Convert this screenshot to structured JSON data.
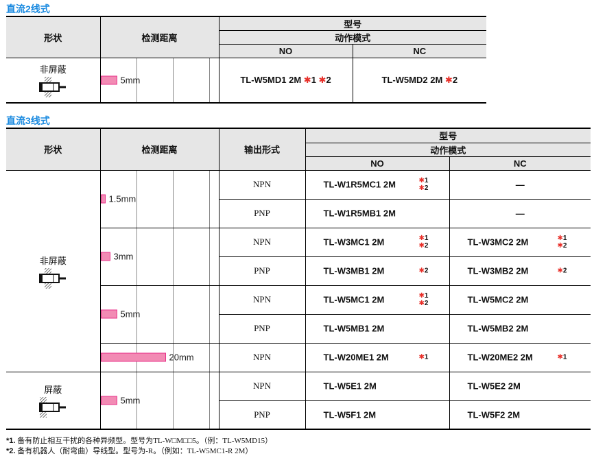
{
  "section1": {
    "title": "直流2线式",
    "headers": {
      "shape": "形状",
      "distance": "检测距离",
      "model": "型号",
      "mode": "动作模式",
      "no": "NO",
      "nc": "NC"
    },
    "row": {
      "shape": "非屏蔽",
      "distance": "5mm",
      "distance_mm": 5,
      "no": "TL-W5MD1 2M",
      "no_notes": [
        "1",
        "2"
      ],
      "nc": "TL-W5MD2 2M",
      "nc_notes": [
        "2"
      ]
    }
  },
  "section2": {
    "title": "直流3线式",
    "headers": {
      "shape": "形状",
      "distance": "检测距离",
      "output": "输出形式",
      "model": "型号",
      "mode": "动作模式",
      "no": "NO",
      "nc": "NC"
    },
    "shapes": [
      "非屏蔽",
      "屏蔽"
    ],
    "distances": [
      {
        "label": "1.5mm",
        "mm": 1.5
      },
      {
        "label": "3mm",
        "mm": 3
      },
      {
        "label": "5mm",
        "mm": 5
      },
      {
        "label": "20mm",
        "mm": 20
      },
      {
        "label": "5mm",
        "mm": 5
      }
    ],
    "rows": [
      {
        "output": "NPN",
        "no": "TL-W1R5MC1 2M",
        "no_notes": "*1\n*2",
        "nc": "—",
        "nc_notes": ""
      },
      {
        "output": "PNP",
        "no": "TL-W1R5MB1 2M",
        "no_notes": "",
        "nc": "—",
        "nc_notes": ""
      },
      {
        "output": "NPN",
        "no": "TL-W3MC1 2M",
        "no_notes": "*1\n*2",
        "nc": "TL-W3MC2 2M",
        "nc_notes": "*1\n*2"
      },
      {
        "output": "PNP",
        "no": "TL-W3MB1 2M",
        "no_notes": "*2",
        "nc": "TL-W3MB2 2M",
        "nc_notes": "*2"
      },
      {
        "output": "NPN",
        "no": "TL-W5MC1 2M",
        "no_notes": "*1\n*2",
        "nc": "TL-W5MC2 2M",
        "nc_notes": ""
      },
      {
        "output": "PNP",
        "no": "TL-W5MB1 2M",
        "no_notes": "",
        "nc": "TL-W5MB2 2M",
        "nc_notes": ""
      },
      {
        "output": "NPN",
        "no": "TL-W20ME1 2M",
        "no_notes": "*1",
        "nc": "TL-W20ME2 2M",
        "nc_notes": "*1"
      },
      {
        "output": "NPN",
        "no": "TL-W5E1 2M",
        "no_notes": "",
        "nc": "TL-W5E2 2M",
        "nc_notes": ""
      },
      {
        "output": "PNP",
        "no": "TL-W5F1 2M",
        "no_notes": "",
        "nc": "TL-W5F2 2M",
        "nc_notes": ""
      }
    ]
  },
  "footnotes": [
    {
      "mark": "*1.",
      "text": "备有防止相互干扰的各种异频型。型号为TL-W□M□□5。（例：TL-W5MD15）"
    },
    {
      "mark": "*2.",
      "text": "备有机器人（耐弯曲）导线型。型号为-R。（例如：TL-W5MC1-R 2M）"
    }
  ],
  "colors": {
    "title": "#1a8ae0",
    "bar": "#f28bb4",
    "note_star": "#e8302a",
    "header_bg": "#e6e6e6"
  }
}
